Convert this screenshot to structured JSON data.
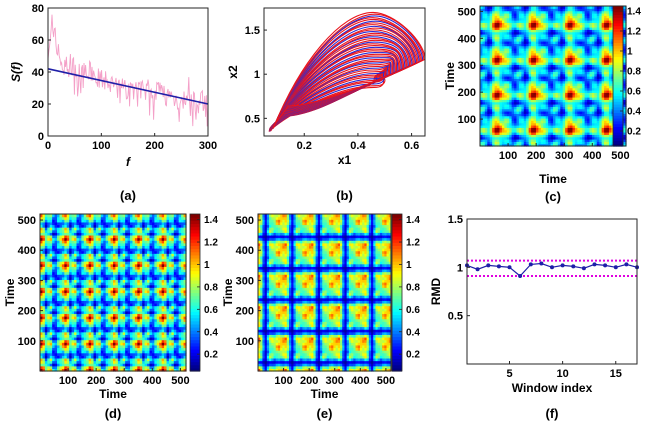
{
  "chart_data": [
    {
      "type": "line",
      "caption": "(a)",
      "xlabel": "f",
      "ylabel": "S(f)",
      "xlim": [
        0,
        300
      ],
      "ylim": [
        0,
        80
      ],
      "xticks": [
        "0",
        "100",
        "200",
        "300"
      ],
      "yticks": [
        "0",
        "20",
        "40",
        "60",
        "80"
      ],
      "series": [
        {
          "kind": "spectrum",
          "color": "#f4a0c8",
          "x": [
            0,
            10,
            20,
            30,
            40,
            60,
            80,
            100,
            120,
            150,
            180,
            200,
            230,
            260,
            280,
            300
          ],
          "y": [
            55,
            68,
            50,
            42,
            45,
            38,
            40,
            35,
            32,
            30,
            28,
            30,
            24,
            22,
            20,
            22
          ]
        },
        {
          "kind": "fit",
          "color": "#1f1fa8",
          "x": [
            0,
            300
          ],
          "y": [
            42,
            20
          ]
        }
      ]
    },
    {
      "type": "line",
      "caption": "(b)",
      "xlabel": "x1",
      "ylabel": "x2",
      "xlim": [
        0.05,
        0.65
      ],
      "ylim": [
        0.3,
        1.75
      ],
      "xticks": [
        "0.2",
        "0.4",
        "0.6"
      ],
      "yticks": [
        "0.5",
        "1",
        "1.5"
      ],
      "series": [
        {
          "name": "phase-portrait-red",
          "color": "#e8141c"
        },
        {
          "name": "phase-portrait-blue",
          "color": "#2a2ad2"
        }
      ]
    },
    {
      "type": "heatmap",
      "caption": "(c)",
      "xlabel": "Time",
      "ylabel": "Time",
      "xticks": [
        "100",
        "200",
        "300",
        "400",
        "500"
      ],
      "yticks": [
        "100",
        "200",
        "300",
        "400",
        "500"
      ],
      "colorbar_ticks": [
        "0.2",
        "0.4",
        "0.6",
        "0.8",
        "1",
        "1.2",
        "1.4"
      ],
      "crange": [
        0.05,
        1.45
      ]
    },
    {
      "type": "heatmap",
      "caption": "(d)",
      "xlabel": "Time",
      "ylabel": "Time",
      "xticks": [
        "100",
        "200",
        "300",
        "400",
        "500"
      ],
      "yticks": [
        "100",
        "200",
        "300",
        "400",
        "500"
      ],
      "colorbar_ticks": [
        "0.2",
        "0.4",
        "0.6",
        "0.8",
        "1",
        "1.2",
        "1.4"
      ],
      "crange": [
        0.05,
        1.45
      ]
    },
    {
      "type": "heatmap",
      "caption": "(e)",
      "xlabel": "Time",
      "ylabel": "Time",
      "xticks": [
        "100",
        "200",
        "300",
        "400",
        "500"
      ],
      "yticks": [
        "100",
        "200",
        "300",
        "400",
        "500"
      ],
      "colorbar_ticks": [
        "0.2",
        "0.4",
        "0.6",
        "0.8",
        "1",
        "1.2",
        "1.4"
      ],
      "crange": [
        0.05,
        1.45
      ]
    },
    {
      "type": "line",
      "caption": "(f)",
      "xlabel": "Window index",
      "ylabel": "RMD",
      "xlim": [
        1,
        17
      ],
      "ylim": [
        0,
        1.5
      ],
      "xticks": [
        "5",
        "10",
        "15"
      ],
      "yticks": [
        "0.5",
        "1",
        "1.5"
      ],
      "series": [
        {
          "kind": "data",
          "color": "#1f1fa8",
          "x": [
            1,
            2,
            3,
            4,
            5,
            6,
            7,
            8,
            9,
            10,
            11,
            12,
            13,
            14,
            15,
            16,
            17
          ],
          "y": [
            1.02,
            0.98,
            1.02,
            1.01,
            1.0,
            0.91,
            1.03,
            1.04,
            1.0,
            1.02,
            1.01,
            0.99,
            1.03,
            1.02,
            1.0,
            1.03,
            1.0
          ]
        },
        {
          "kind": "upper-bound",
          "color": "#e000e0",
          "y": 1.07
        },
        {
          "kind": "lower-bound",
          "color": "#e000e0",
          "y": 0.91
        }
      ]
    }
  ]
}
